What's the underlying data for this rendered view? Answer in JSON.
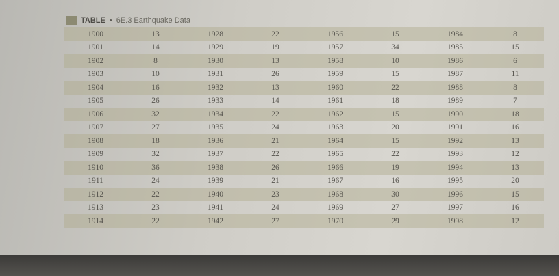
{
  "header": {
    "label": "TABLE",
    "title": "6E.3 Earthquake Data"
  },
  "table": {
    "rows": [
      [
        1900,
        13,
        1928,
        22,
        1956,
        15,
        1984,
        8
      ],
      [
        1901,
        14,
        1929,
        19,
        1957,
        34,
        1985,
        15
      ],
      [
        1902,
        8,
        1930,
        13,
        1958,
        10,
        1986,
        6
      ],
      [
        1903,
        10,
        1931,
        26,
        1959,
        15,
        1987,
        11
      ],
      [
        1904,
        16,
        1932,
        13,
        1960,
        22,
        1988,
        8
      ],
      [
        1905,
        26,
        1933,
        14,
        1961,
        18,
        1989,
        7
      ],
      [
        1906,
        32,
        1934,
        22,
        1962,
        15,
        1990,
        18
      ],
      [
        1907,
        27,
        1935,
        24,
        1963,
        20,
        1991,
        16
      ],
      [
        1908,
        18,
        1936,
        21,
        1964,
        15,
        1992,
        13
      ],
      [
        1909,
        32,
        1937,
        22,
        1965,
        22,
        1993,
        12
      ],
      [
        1910,
        36,
        1938,
        26,
        1966,
        19,
        1994,
        13
      ],
      [
        1911,
        24,
        1939,
        21,
        1967,
        16,
        1995,
        20
      ],
      [
        1912,
        22,
        1940,
        23,
        1968,
        30,
        1996,
        15
      ],
      [
        1913,
        23,
        1941,
        24,
        1969,
        27,
        1997,
        16
      ],
      [
        1914,
        22,
        1942,
        27,
        1970,
        29,
        1998,
        12
      ]
    ]
  }
}
